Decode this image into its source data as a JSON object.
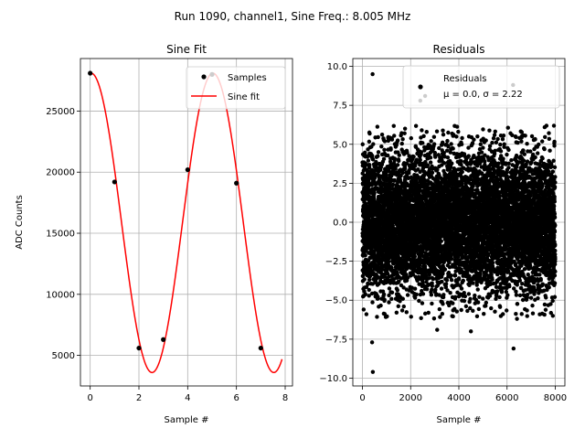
{
  "suptitle": "Run 1090, channel1, Sine Freq.: 8.005 MHz",
  "chart_data": [
    {
      "type": "line",
      "title": "Sine Fit",
      "xlabel": "Sample #",
      "ylabel": "ADC Counts",
      "xlim": [
        -0.4,
        8.3
      ],
      "ylim": [
        2500,
        29300
      ],
      "xticks": [
        0,
        2,
        4,
        6,
        8
      ],
      "xtick_labels": [
        "0",
        "2",
        "4",
        "6",
        "8"
      ],
      "yticks": [
        5000,
        10000,
        15000,
        20000,
        25000
      ],
      "ytick_labels": [
        "5000",
        "10000",
        "15000",
        "20000",
        "25000"
      ],
      "grid": true,
      "legend": {
        "position": "top-right",
        "entries": [
          "Samples",
          "Sine fit"
        ]
      },
      "series": [
        {
          "name": "Samples",
          "kind": "scatter",
          "color": "#000000",
          "x": [
            0,
            1,
            2,
            3,
            4,
            5,
            6,
            7
          ],
          "y": [
            28100,
            19200,
            5600,
            6300,
            20200,
            28000,
            19100,
            5600
          ]
        },
        {
          "name": "Sine fit",
          "kind": "line",
          "color": "#ff0000",
          "model": {
            "amplitude": 12250,
            "offset": 15850,
            "period": 4.995,
            "phase_samples": 0.04,
            "x_start": 0,
            "x_end": 7.87
          }
        }
      ]
    },
    {
      "type": "scatter",
      "title": "Residuals",
      "xlabel": "Sample #",
      "ylabel": "",
      "xlim": [
        -400,
        8400
      ],
      "ylim": [
        -10.5,
        10.5
      ],
      "xticks": [
        0,
        2000,
        4000,
        6000,
        8000
      ],
      "xtick_labels": [
        "0",
        "2000",
        "4000",
        "6000",
        "8000"
      ],
      "yticks": [
        -10,
        -7.5,
        -5,
        -2.5,
        0,
        2.5,
        5,
        7.5,
        10
      ],
      "ytick_labels": [
        "−10.0",
        "−7.5",
        "−5.0",
        "−2.5",
        "0.0",
        "2.5",
        "5.0",
        "7.5",
        "10.0"
      ],
      "grid": true,
      "legend": {
        "position": "top-right",
        "entries": [
          "Residuals",
          "μ = 0.0, σ = 2.22"
        ]
      },
      "series": [
        {
          "name": "Residuals",
          "color": "#000000",
          "n_points": 8000,
          "x_range": [
            0,
            7999
          ],
          "mean": 0.0,
          "std": 2.22,
          "outliers": [
            {
              "x": 420,
              "y": 9.5
            },
            {
              "x": 430,
              "y": -9.6
            },
            {
              "x": 400,
              "y": -7.7
            },
            {
              "x": 6250,
              "y": 8.8
            },
            {
              "x": 6270,
              "y": -8.1
            },
            {
              "x": 2400,
              "y": 7.8
            },
            {
              "x": 2600,
              "y": 8.1
            },
            {
              "x": 3100,
              "y": -6.9
            },
            {
              "x": 4500,
              "y": -7.0
            },
            {
              "x": 50,
              "y": -5.6
            },
            {
              "x": 7900,
              "y": -6.0
            }
          ]
        }
      ]
    }
  ]
}
